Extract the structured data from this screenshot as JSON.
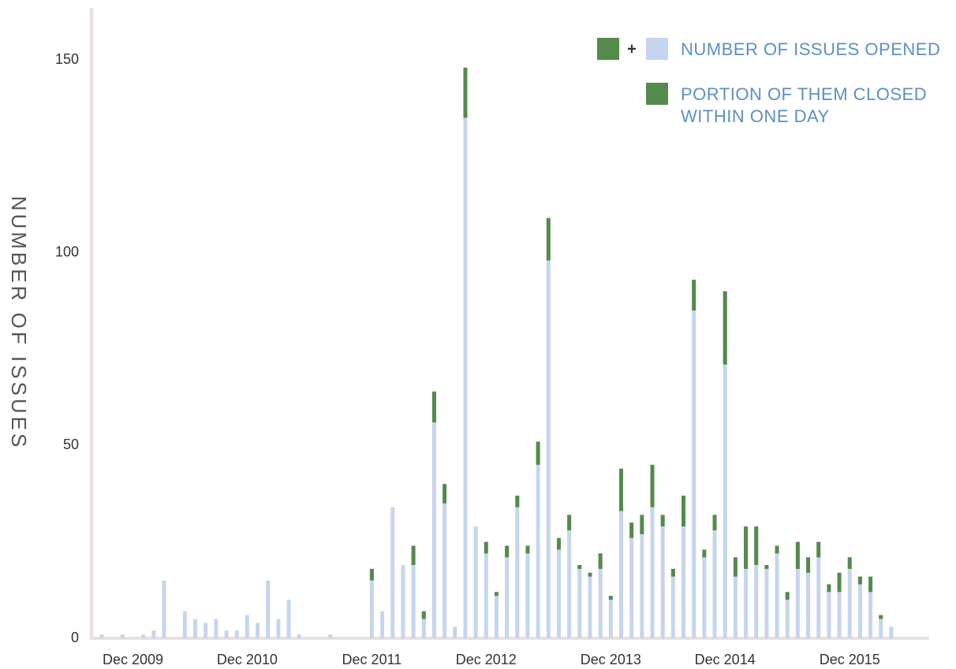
{
  "chart_data": {
    "type": "bar",
    "stacked_overlay": true,
    "y_label": "NUMBER OF ISSUES",
    "legend_joiner": "+",
    "legend_position": "upper right",
    "categories": [
      null,
      null,
      null,
      "Dec 2009",
      null,
      null,
      null,
      null,
      null,
      null,
      null,
      null,
      null,
      null,
      "Dec 2010",
      null,
      null,
      null,
      null,
      null,
      null,
      null,
      null,
      null,
      null,
      null,
      "Dec 2011",
      null,
      null,
      null,
      null,
      null,
      null,
      null,
      null,
      null,
      null,
      "Dec 2012",
      null,
      null,
      null,
      null,
      null,
      null,
      null,
      null,
      null,
      null,
      null,
      "Dec 2013",
      null,
      null,
      null,
      null,
      null,
      null,
      null,
      null,
      null,
      null,
      "Dec 2014",
      null,
      null,
      null,
      null,
      null,
      null,
      null,
      null,
      null,
      null,
      null,
      "Dec 2015",
      null,
      null,
      null,
      null
    ],
    "series": [
      {
        "name": "NUMBER OF ISSUES OPENED",
        "color": "#c6d5ee",
        "values": [
          1,
          0,
          1,
          0,
          1,
          2,
          15,
          0,
          7,
          5,
          4,
          5,
          2,
          2,
          6,
          4,
          15,
          5,
          10,
          1,
          0,
          0,
          1,
          0,
          0,
          0,
          18,
          7,
          34,
          19,
          24,
          7,
          64,
          40,
          3,
          148,
          29,
          25,
          12,
          24,
          37,
          24,
          51,
          109,
          26,
          32,
          19,
          17,
          22,
          11,
          44,
          30,
          32,
          45,
          32,
          18,
          37,
          93,
          23,
          32,
          90,
          21,
          29,
          29,
          19,
          24,
          12,
          25,
          21,
          25,
          14,
          17,
          21,
          16,
          16,
          6,
          3
        ]
      },
      {
        "name": "PORTION OF THEM CLOSED WITHIN ONE DAY",
        "color": "#548a4c",
        "values": [
          0,
          0,
          0,
          0,
          0,
          0,
          0,
          0,
          0,
          0,
          0,
          0,
          0,
          0,
          0,
          0,
          0,
          0,
          0,
          0,
          0,
          0,
          0,
          0,
          0,
          0,
          3,
          0,
          0,
          0,
          5,
          2,
          8,
          5,
          0,
          13,
          0,
          3,
          1,
          3,
          3,
          2,
          6,
          11,
          3,
          4,
          1,
          1,
          4,
          1,
          11,
          4,
          5,
          11,
          3,
          2,
          8,
          8,
          2,
          4,
          19,
          5,
          11,
          10,
          1,
          2,
          2,
          7,
          4,
          4,
          2,
          5,
          3,
          2,
          4,
          1,
          0
        ]
      }
    ],
    "ylim": [
      0,
      163.5
    ],
    "yticks": [
      0,
      50,
      100,
      150
    ],
    "grid": false
  }
}
